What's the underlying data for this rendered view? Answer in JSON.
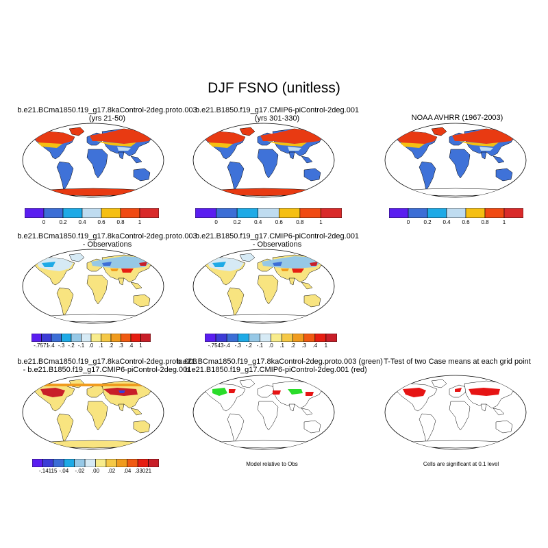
{
  "title": "DJF FSNO (unitless)",
  "colors": {
    "scale": [
      "#5a1ef0",
      "#3c6ed6",
      "#1eaae6",
      "#bfdcf0",
      "#f5bf12",
      "#f04a12",
      "#d92a2a"
    ],
    "diff": [
      "#5a1ef0",
      "#3c3cd6",
      "#3c6ed6",
      "#1eaae6",
      "#96c8e6",
      "#d6eaf5",
      "#f8ec8c",
      "#f5c846",
      "#f09b1e",
      "#f05a12",
      "#e61e12",
      "#c81e28"
    ],
    "land_low": "#3f72d8",
    "snow_high": "#e83a12",
    "diff_land": "#f8e480",
    "green": "#2adc2a",
    "sig": "#e61414"
  },
  "panels": [
    {
      "line1": "b.e21.BCma1850.f19_g17.8kaControl-2deg.proto.003",
      "line2": "(yrs 21-50)"
    },
    {
      "line1": "b.e21.B1850.f19_g17.CMIP6-piControl-2deg.001",
      "line2": "(yrs 301-330)"
    },
    {
      "line1": "NOAA AVHRR (1967-2003)",
      "line2": ""
    },
    {
      "line1": "b.e21.BCma1850.f19_g17.8kaControl-2deg.proto.003",
      "line2": "- Observations"
    },
    {
      "line1": "b.e21.B1850.f19_g17.CMIP6-piControl-2deg.001",
      "line2": "- Observations"
    },
    {
      "line1": "b.e21.BCma1850.f19_g17.8kaControl-2deg.proto.003",
      "line2": "- b.e21.B1850.f19_g17.CMIP6-piControl-2deg.001"
    },
    {
      "line1": "b.e21.BCma1850.f19_g17.8kaControl-2deg.proto.003 (green)",
      "line2": "b.e21.B1850.f19_g17.CMIP6-piControl-2deg.001 (red)"
    },
    {
      "line1": "T-Test of two Case means at each grid point",
      "line2": ""
    }
  ],
  "colorbars": {
    "scale_labels": [
      "0",
      "0.2",
      "0.4",
      "0.6",
      "0.8",
      "1"
    ],
    "diff1_labels": [
      "-.7571",
      "-.4",
      "-.3",
      "-.2",
      "-.1",
      ".0",
      ".1",
      ".2",
      ".3",
      ".4",
      "1"
    ],
    "diff2_labels": [
      "-.7543",
      "-.4",
      "-.3",
      "-.2",
      "-.1",
      ".0",
      ".1",
      ".2",
      ".3",
      ".4",
      "1"
    ],
    "case_labels": [
      "-.14115",
      "-.04",
      "-.02",
      ".00",
      ".02",
      ".04",
      ".33021"
    ]
  },
  "notes": {
    "model_vs_obs": "Model relative to Obs",
    "significance": "Cells are significant at 0.1 level"
  }
}
